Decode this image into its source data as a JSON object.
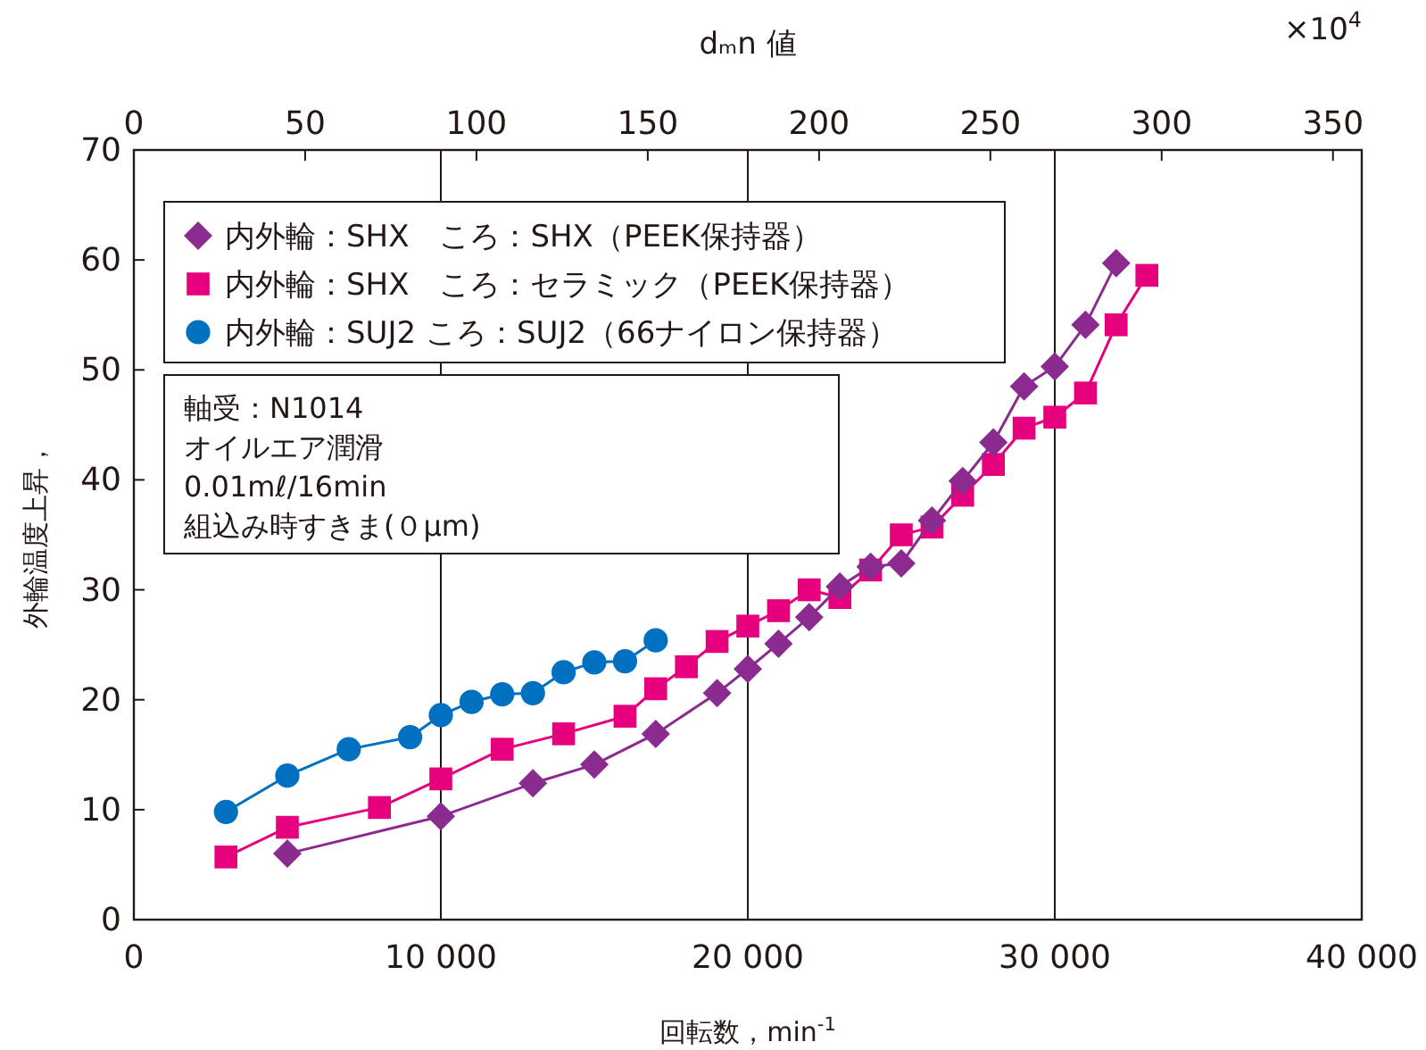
{
  "chart_data": {
    "type": "line",
    "xlabel": "回転数，min$^{-1}$",
    "ylabel": "外輪温度上昇，",
    "x2label": "dₘn 値",
    "xlim": [
      0,
      40000
    ],
    "xticks": [
      0,
      {
        "value": 10000,
        "label": "10 000"
      },
      {
        "value": 20000,
        "label": "20 000"
      },
      {
        "value": 30000,
        "label": "30 000"
      },
      {
        "value": 40000,
        "label": "40 000"
      }
    ],
    "x2lim": [
      0,
      358.4
    ],
    "x2ticks": [
      0,
      50,
      100,
      150,
      200,
      250,
      300,
      350
    ],
    "ylim": [
      0,
      70
    ],
    "yticks": [
      0,
      10,
      20,
      30,
      40,
      50,
      60,
      70
    ],
    "grid": "x",
    "legend": "top left",
    "line_style": "solid",
    "annotations": [
      "×10$^{4}$",
      "軸受：N1014",
      "オイルエア潤滑",
      "0.01mℓ/16min",
      "組込み時すきま(０μm)"
    ],
    "series": [
      {
        "name": "内外輪：SHX　ころ：SHX（PEEK保持器）",
        "color": "#8b2a8f",
        "marker": "diamond",
        "x": [
          5000,
          10000,
          13000,
          15000,
          17000,
          19000,
          20000,
          21000,
          22000,
          23000,
          24000,
          25000,
          26000,
          27000,
          28000,
          29000,
          30000,
          31000,
          32000
        ],
        "values": [
          6.0,
          9.4,
          12.4,
          14.1,
          16.9,
          20.6,
          22.8,
          25.1,
          27.5,
          30.3,
          32.1,
          32.4,
          36.3,
          39.9,
          43.4,
          48.5,
          50.3,
          54.1,
          59.7
        ]
      },
      {
        "name": "内外輪：SHX　ころ：セラミック（PEEK保持器）",
        "color": "#e6007e",
        "marker": "square",
        "x": [
          3000,
          5000,
          8000,
          10000,
          12000,
          14000,
          16000,
          17000,
          18000,
          19000,
          20000,
          21000,
          22000,
          23000,
          24000,
          25000,
          26000,
          27000,
          28000,
          29000,
          30000,
          31000,
          32000,
          33000
        ],
        "values": [
          5.7,
          8.4,
          10.2,
          12.8,
          15.5,
          16.9,
          18.5,
          21.0,
          23.0,
          25.3,
          26.7,
          28.1,
          30.0,
          29.3,
          31.8,
          35.0,
          35.7,
          38.6,
          41.4,
          44.7,
          45.7,
          47.9,
          54.1,
          58.6
        ]
      },
      {
        "name": "内外輪：SUJ2 ころ：SUJ2（66ナイロン保持器）",
        "color": "#0070c0",
        "marker": "circle",
        "x": [
          3000,
          5000,
          7000,
          9000,
          10000,
          11000,
          12000,
          13000,
          14000,
          15000,
          16000,
          17000
        ],
        "values": [
          9.8,
          13.1,
          15.5,
          16.6,
          18.6,
          19.8,
          20.5,
          20.6,
          22.5,
          23.4,
          23.5,
          25.4
        ]
      }
    ]
  }
}
